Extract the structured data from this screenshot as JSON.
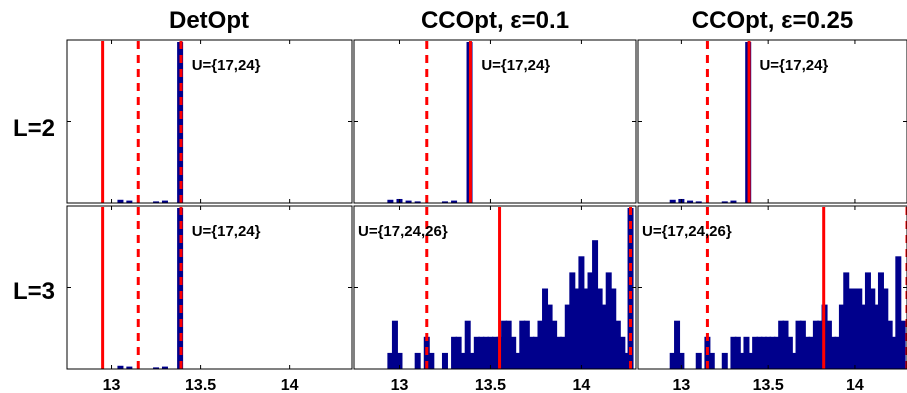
{
  "chart_data": {
    "type": "bar",
    "columns": [
      "DetOpt",
      "CCOpt, ε=0.1",
      "CCOpt, ε=0.25"
    ],
    "rows": [
      "L=2",
      "L=3"
    ],
    "x_ticks": [
      "13",
      "13.5",
      "14"
    ],
    "grid": false,
    "panels": [
      {
        "row": "L=2",
        "column": "DetOpt",
        "label": "U={17,24}",
        "xlim": [
          12.75,
          14.35
        ],
        "ymax": 100,
        "solid_line": 12.95,
        "dashed_lines": [
          13.15,
          13.39
        ],
        "bars": [
          [
            13.05,
            2
          ],
          [
            13.1,
            1.5
          ],
          [
            13.25,
            1
          ],
          [
            13.3,
            1.5
          ],
          [
            13.385,
            100
          ]
        ]
      },
      {
        "row": "L=2",
        "column": "CCOpt, ε=0.1",
        "label": "U={17,24}",
        "xlim": [
          12.75,
          14.3
        ],
        "ymax": 100,
        "solid_line": 13.39,
        "dashed_lines": [
          13.15
        ],
        "bars": [
          [
            12.95,
            2
          ],
          [
            13.0,
            2.5
          ],
          [
            13.05,
            1.5
          ],
          [
            13.1,
            1
          ],
          [
            13.25,
            1
          ],
          [
            13.3,
            1.5
          ],
          [
            13.385,
            100
          ]
        ]
      },
      {
        "row": "L=2",
        "column": "CCOpt, ε=0.25",
        "label": "U={17,24}",
        "xlim": [
          12.75,
          14.3
        ],
        "ymax": 100,
        "solid_line": 13.39,
        "dashed_lines": [
          13.15
        ],
        "bars": [
          [
            12.95,
            2
          ],
          [
            13.0,
            2.5
          ],
          [
            13.05,
            1.5
          ],
          [
            13.1,
            1
          ],
          [
            13.25,
            1
          ],
          [
            13.3,
            1.5
          ],
          [
            13.385,
            100
          ]
        ]
      },
      {
        "row": "L=3",
        "column": "DetOpt",
        "label": "U={17,24}",
        "xlim": [
          12.75,
          14.35
        ],
        "ymax": 100,
        "solid_line": 12.95,
        "dashed_lines": [
          13.15,
          13.39
        ],
        "bars": [
          [
            13.05,
            2
          ],
          [
            13.1,
            1.5
          ],
          [
            13.25,
            1
          ],
          [
            13.3,
            1.5
          ],
          [
            13.385,
            100
          ]
        ]
      },
      {
        "row": "L=3",
        "column": "CCOpt, ε=0.1",
        "label": "U={17,24,26}",
        "xlim": [
          12.75,
          14.3
        ],
        "ymax": 100,
        "solid_line": 13.55,
        "dashed_lines": [
          13.15,
          14.27
        ],
        "bars": [
          [
            12.95,
            10
          ],
          [
            12.975,
            30
          ],
          [
            13.0,
            10
          ],
          [
            13.1,
            10
          ],
          [
            13.15,
            20
          ],
          [
            13.175,
            10
          ],
          [
            13.25,
            10
          ],
          [
            13.3,
            20
          ],
          [
            13.325,
            20
          ],
          [
            13.35,
            10
          ],
          [
            13.375,
            30
          ],
          [
            13.4,
            10
          ],
          [
            13.425,
            20
          ],
          [
            13.45,
            20
          ],
          [
            13.475,
            20
          ],
          [
            13.5,
            20
          ],
          [
            13.525,
            20
          ],
          [
            13.55,
            20
          ],
          [
            13.575,
            30
          ],
          [
            13.6,
            30
          ],
          [
            13.625,
            20
          ],
          [
            13.65,
            10
          ],
          [
            13.675,
            30
          ],
          [
            13.7,
            30
          ],
          [
            13.725,
            20
          ],
          [
            13.75,
            20
          ],
          [
            13.775,
            30
          ],
          [
            13.8,
            50
          ],
          [
            13.825,
            40
          ],
          [
            13.85,
            30
          ],
          [
            13.875,
            20
          ],
          [
            13.9,
            20
          ],
          [
            13.925,
            40
          ],
          [
            13.95,
            60
          ],
          [
            13.975,
            50
          ],
          [
            14.0,
            70
          ],
          [
            14.025,
            50
          ],
          [
            14.05,
            60
          ],
          [
            14.075,
            80
          ],
          [
            14.1,
            50
          ],
          [
            14.125,
            40
          ],
          [
            14.15,
            60
          ],
          [
            14.175,
            50
          ],
          [
            14.2,
            30
          ],
          [
            14.225,
            20
          ],
          [
            14.25,
            10
          ],
          [
            14.27,
            100
          ]
        ]
      },
      {
        "row": "L=3",
        "column": "CCOpt, ε=0.25",
        "label": "U={17,24,26}",
        "xlim": [
          12.75,
          14.3
        ],
        "ymax": 100,
        "solid_line": 13.82,
        "dashed_lines": [
          13.15,
          14.3
        ],
        "bars": [
          [
            12.95,
            10
          ],
          [
            12.975,
            30
          ],
          [
            13.0,
            10
          ],
          [
            13.1,
            10
          ],
          [
            13.15,
            20
          ],
          [
            13.175,
            10
          ],
          [
            13.25,
            10
          ],
          [
            13.3,
            20
          ],
          [
            13.325,
            20
          ],
          [
            13.35,
            10
          ],
          [
            13.375,
            20
          ],
          [
            13.4,
            10
          ],
          [
            13.425,
            20
          ],
          [
            13.45,
            20
          ],
          [
            13.475,
            20
          ],
          [
            13.5,
            20
          ],
          [
            13.525,
            20
          ],
          [
            13.55,
            20
          ],
          [
            13.575,
            30
          ],
          [
            13.6,
            30
          ],
          [
            13.625,
            20
          ],
          [
            13.65,
            10
          ],
          [
            13.675,
            30
          ],
          [
            13.7,
            30
          ],
          [
            13.725,
            20
          ],
          [
            13.75,
            20
          ],
          [
            13.775,
            30
          ],
          [
            13.8,
            30
          ],
          [
            13.825,
            40
          ],
          [
            13.85,
            30
          ],
          [
            13.875,
            20
          ],
          [
            13.9,
            20
          ],
          [
            13.925,
            40
          ],
          [
            13.95,
            60
          ],
          [
            13.975,
            50
          ],
          [
            14.0,
            50
          ],
          [
            14.025,
            50
          ],
          [
            14.05,
            40
          ],
          [
            14.075,
            60
          ],
          [
            14.1,
            50
          ],
          [
            14.125,
            40
          ],
          [
            14.15,
            60
          ],
          [
            14.175,
            50
          ],
          [
            14.2,
            30
          ],
          [
            14.225,
            20
          ],
          [
            14.25,
            70
          ],
          [
            14.275,
            30
          ]
        ]
      }
    ]
  },
  "colors": {
    "bar": "#00008c",
    "line": "#ff0000",
    "axis": "#000000"
  }
}
